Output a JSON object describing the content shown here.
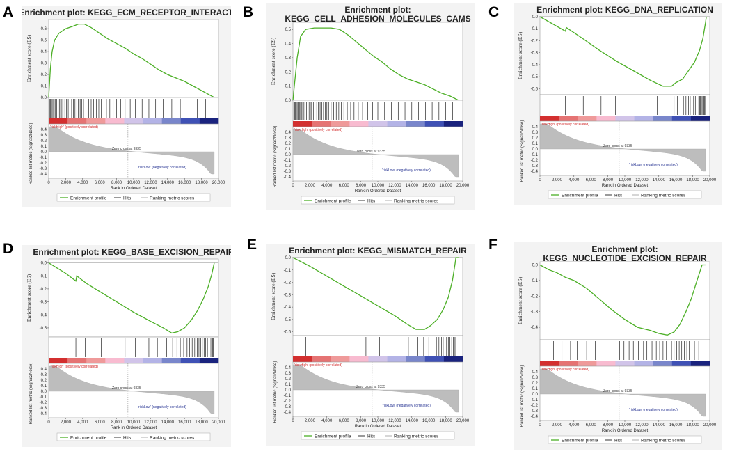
{
  "common": {
    "es_ylabel": "Enrichment score (ES)",
    "metric_ylabel": "Ranked list metric (Signal2Noise)",
    "xlabel": "Rank in Ordered Dataset",
    "x_ticks": [
      0,
      2000,
      4000,
      6000,
      8000,
      10000,
      12000,
      14000,
      16000,
      18000,
      20000
    ],
    "metric_ticks": [
      0.4,
      0.3,
      0.2,
      0.1,
      0.0,
      -0.1,
      -0.2,
      -0.3,
      -0.4
    ],
    "high_label": "'riskHigh' (positively correlated)",
    "low_label": "'riskLow' (negatively correlated)",
    "zero_cross": "Zero cross at 9335",
    "legend": [
      "Enrichment profile",
      "Hits",
      "Ranking metric scores"
    ],
    "colors": {
      "es_line": "#4caf26",
      "hits": "#000000",
      "metric": "#bdbdbd",
      "high_text": "#d32f2f",
      "low_text": "#283593"
    }
  },
  "chart_data": [
    {
      "panel": "A",
      "type": "line",
      "title": "Enrichment plot: KEGG_ECM_RECEPTOR_INTERACTION",
      "title_lines": [
        "Enrichment plot: KEGG_ECM_RECEPTOR_INTERACTION"
      ],
      "xlabel": "Rank in Ordered Dataset",
      "ylabel": "Enrichment score (ES)",
      "xlim": [
        0,
        20000
      ],
      "ylim": [
        0,
        0.68
      ],
      "y_ticks": [
        0.6,
        0.5,
        0.4,
        0.3,
        0.2,
        0.1,
        0.0
      ],
      "es_points": [
        [
          0,
          0.0
        ],
        [
          200,
          0.25
        ],
        [
          400,
          0.4
        ],
        [
          700,
          0.5
        ],
        [
          1200,
          0.56
        ],
        [
          2000,
          0.6
        ],
        [
          2800,
          0.62
        ],
        [
          3500,
          0.64
        ],
        [
          4200,
          0.64
        ],
        [
          5000,
          0.61
        ],
        [
          6000,
          0.56
        ],
        [
          7000,
          0.51
        ],
        [
          8000,
          0.47
        ],
        [
          9000,
          0.43
        ],
        [
          10000,
          0.38
        ],
        [
          11000,
          0.34
        ],
        [
          12000,
          0.29
        ],
        [
          13000,
          0.24
        ],
        [
          14000,
          0.2
        ],
        [
          15000,
          0.17
        ],
        [
          16000,
          0.14
        ],
        [
          17000,
          0.1
        ],
        [
          18000,
          0.06
        ],
        [
          19000,
          0.02
        ],
        [
          19500,
          0.0
        ]
      ],
      "hits": [
        100,
        200,
        300,
        400,
        500,
        650,
        800,
        950,
        1100,
        1250,
        1400,
        1550,
        1700,
        1900,
        2100,
        2300,
        2500,
        2700,
        2900,
        3100,
        3300,
        3500,
        3700,
        3900,
        4100,
        4400,
        4700,
        5000,
        5300,
        5600,
        5900,
        6200,
        6500,
        6800,
        7200,
        7600,
        8000,
        8500,
        9000,
        9600,
        10200,
        11000,
        11800,
        12600,
        13500,
        14500,
        15500,
        16500,
        17500,
        18500
      ]
    },
    {
      "panel": "B",
      "type": "line",
      "title": "Enrichment plot: KEGG_CELL_ADHESION_MOLECULES_CAMS",
      "title_lines": [
        "Enrichment plot:",
        "KEGG_CELL_ADHESION_MOLECULES_CAMS"
      ],
      "xlabel": "Rank in Ordered Dataset",
      "ylabel": "Enrichment score (ES)",
      "xlim": [
        0,
        20000
      ],
      "ylim": [
        0,
        0.55
      ],
      "y_ticks": [
        0.5,
        0.4,
        0.3,
        0.2,
        0.1,
        0.0
      ],
      "es_points": [
        [
          0,
          0.0
        ],
        [
          200,
          0.12
        ],
        [
          500,
          0.3
        ],
        [
          900,
          0.45
        ],
        [
          1500,
          0.5
        ],
        [
          2500,
          0.51
        ],
        [
          3500,
          0.51
        ],
        [
          4500,
          0.51
        ],
        [
          5500,
          0.5
        ],
        [
          6500,
          0.46
        ],
        [
          7500,
          0.41
        ],
        [
          8500,
          0.36
        ],
        [
          9500,
          0.31
        ],
        [
          10500,
          0.27
        ],
        [
          11500,
          0.22
        ],
        [
          12500,
          0.18
        ],
        [
          13500,
          0.15
        ],
        [
          14500,
          0.13
        ],
        [
          15500,
          0.11
        ],
        [
          16500,
          0.08
        ],
        [
          17500,
          0.05
        ],
        [
          18500,
          0.03
        ],
        [
          19500,
          0.0
        ]
      ],
      "hits": [
        100,
        200,
        300,
        400,
        500,
        600,
        700,
        800,
        900,
        1000,
        1150,
        1300,
        1450,
        1600,
        1750,
        1900,
        2050,
        2200,
        2400,
        2600,
        2800,
        3000,
        3200,
        3400,
        3600,
        3800,
        4000,
        4200,
        4500,
        4800,
        5100,
        5400,
        5700,
        6000,
        6400,
        6800,
        7200,
        7700,
        8200,
        8800,
        9400,
        10000,
        10800,
        11600,
        12400,
        13200,
        14000,
        14800,
        15600,
        16400,
        17200,
        18000,
        18800
      ]
    },
    {
      "panel": "C",
      "type": "line",
      "title": "Enrichment plot: KEGG_DNA_REPLICATION",
      "title_lines": [
        "Enrichment plot: KEGG_DNA_REPLICATION"
      ],
      "xlabel": "Rank in Ordered Dataset",
      "ylabel": "Enrichment score (ES)",
      "xlim": [
        0,
        20000
      ],
      "ylim": [
        -0.65,
        0.0
      ],
      "y_ticks": [
        0.0,
        -0.1,
        -0.2,
        -0.3,
        -0.4,
        -0.5,
        -0.6
      ],
      "es_points": [
        [
          0,
          0.0
        ],
        [
          2000,
          -0.08
        ],
        [
          3000,
          -0.12
        ],
        [
          3100,
          -0.09
        ],
        [
          5000,
          -0.18
        ],
        [
          7000,
          -0.28
        ],
        [
          9000,
          -0.37
        ],
        [
          11000,
          -0.45
        ],
        [
          13000,
          -0.53
        ],
        [
          14500,
          -0.58
        ],
        [
          15500,
          -0.58
        ],
        [
          16000,
          -0.55
        ],
        [
          16800,
          -0.52
        ],
        [
          17500,
          -0.45
        ],
        [
          18200,
          -0.38
        ],
        [
          18800,
          -0.28
        ],
        [
          19200,
          -0.18
        ],
        [
          19500,
          -0.05
        ],
        [
          19600,
          0.0
        ]
      ],
      "hits": [
        3000,
        5100,
        7200,
        8900,
        13800,
        15200,
        15800,
        16200,
        16600,
        16900,
        17200,
        17500,
        17700,
        17900,
        18100,
        18300,
        18500,
        18700,
        18800,
        18900,
        19000,
        19100,
        19200,
        19300,
        19400,
        19500
      ]
    },
    {
      "panel": "D",
      "type": "line",
      "title": "Enrichment plot: KEGG_BASE_EXCISION_REPAIR",
      "title_lines": [
        "Enrichment plot: KEGG_BASE_EXCISION_REPAIR"
      ],
      "xlabel": "Rank in Ordered Dataset",
      "ylabel": "Enrichment score (ES)",
      "xlim": [
        0,
        20000
      ],
      "ylim": [
        -0.57,
        0.03
      ],
      "y_ticks": [
        0.0,
        -0.1,
        -0.2,
        -0.3,
        -0.4,
        -0.5
      ],
      "es_points": [
        [
          0,
          0.0
        ],
        [
          2000,
          -0.08
        ],
        [
          3200,
          -0.14
        ],
        [
          3300,
          -0.1
        ],
        [
          4500,
          -0.16
        ],
        [
          6000,
          -0.22
        ],
        [
          8000,
          -0.3
        ],
        [
          10000,
          -0.38
        ],
        [
          12000,
          -0.45
        ],
        [
          13500,
          -0.5
        ],
        [
          14500,
          -0.54
        ],
        [
          15200,
          -0.53
        ],
        [
          16000,
          -0.5
        ],
        [
          16800,
          -0.44
        ],
        [
          17500,
          -0.37
        ],
        [
          18200,
          -0.28
        ],
        [
          18800,
          -0.18
        ],
        [
          19200,
          -0.09
        ],
        [
          19500,
          0.0
        ]
      ],
      "hits": [
        3200,
        4300,
        6200,
        7100,
        9000,
        10200,
        11800,
        12800,
        13900,
        14600,
        15100,
        15500,
        15900,
        16300,
        16600,
        16900,
        17200,
        17500,
        17700,
        17900,
        18100,
        18300,
        18500,
        18700,
        18900,
        19100,
        19300,
        19400
      ]
    },
    {
      "panel": "E",
      "type": "line",
      "title": "Enrichment plot: KEGG_MISMATCH_REPAIR",
      "title_lines": [
        "Enrichment plot: KEGG_MISMATCH_REPAIR"
      ],
      "xlabel": "Rank in Ordered Dataset",
      "ylabel": "Enrichment score (ES)",
      "xlim": [
        0,
        20000
      ],
      "ylim": [
        -0.63,
        0.0
      ],
      "y_ticks": [
        0.0,
        -0.1,
        -0.2,
        -0.3,
        -0.4,
        -0.5,
        -0.6
      ],
      "es_points": [
        [
          0,
          0.0
        ],
        [
          2000,
          -0.07
        ],
        [
          4000,
          -0.15
        ],
        [
          6000,
          -0.23
        ],
        [
          8000,
          -0.31
        ],
        [
          10000,
          -0.39
        ],
        [
          12000,
          -0.47
        ],
        [
          13500,
          -0.54
        ],
        [
          14500,
          -0.58
        ],
        [
          15500,
          -0.58
        ],
        [
          16200,
          -0.55
        ],
        [
          17000,
          -0.5
        ],
        [
          17700,
          -0.42
        ],
        [
          18300,
          -0.32
        ],
        [
          18800,
          -0.18
        ],
        [
          19100,
          -0.05
        ],
        [
          19200,
          0.0
        ],
        [
          19500,
          0.0
        ]
      ],
      "hits": [
        1500,
        5200,
        8600,
        10200,
        11200,
        13600,
        14700,
        15400,
        16000,
        16500,
        16900,
        17200,
        17500,
        17700,
        17900,
        18100,
        18300,
        18500,
        18700,
        18900,
        19000,
        19100
      ]
    },
    {
      "panel": "F",
      "type": "line",
      "title": "Enrichment plot: KEGG_NUCLEOTIDE_EXCISION_REPAIR",
      "title_lines": [
        "Enrichment plot:",
        "KEGG_NUCLEOTIDE_EXCISION_REPAIR"
      ],
      "xlabel": "Rank in Ordered Dataset",
      "ylabel": "Enrichment score (ES)",
      "xlim": [
        0,
        20000
      ],
      "ylim": [
        -0.48,
        0.02
      ],
      "y_ticks": [
        0.0,
        -0.1,
        -0.2,
        -0.3,
        -0.4
      ],
      "es_points": [
        [
          0,
          0.0
        ],
        [
          1000,
          -0.03
        ],
        [
          2000,
          -0.05
        ],
        [
          3000,
          -0.08
        ],
        [
          4000,
          -0.1
        ],
        [
          5500,
          -0.15
        ],
        [
          7000,
          -0.22
        ],
        [
          8500,
          -0.29
        ],
        [
          10000,
          -0.35
        ],
        [
          11500,
          -0.4
        ],
        [
          13000,
          -0.42
        ],
        [
          14000,
          -0.44
        ],
        [
          15000,
          -0.45
        ],
        [
          15800,
          -0.43
        ],
        [
          16500,
          -0.38
        ],
        [
          17200,
          -0.3
        ],
        [
          17800,
          -0.22
        ],
        [
          18500,
          -0.1
        ],
        [
          19100,
          0.0
        ],
        [
          19500,
          0.0
        ]
      ],
      "hits": [
        700,
        1600,
        2600,
        3600,
        4400,
        5500,
        6500,
        9400,
        9900,
        10500,
        11000,
        11600,
        12200,
        12600,
        13200,
        13700,
        14100,
        14500,
        14900,
        15200,
        15500,
        15800,
        16100,
        16400,
        16700,
        17000,
        17300,
        17600,
        17900,
        18200,
        18500,
        18700
      ]
    }
  ]
}
